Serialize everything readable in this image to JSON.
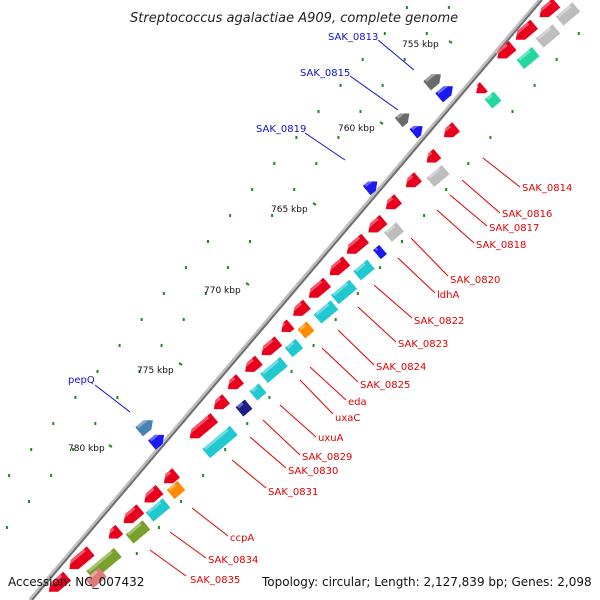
{
  "title": "Streptococcus agalactiae A909, complete genome",
  "footer": {
    "accession": "Accession: NC_007432",
    "topology": "Topology: circular; Length: 2,127,839 bp; Genes: 2,098"
  },
  "ticks": [
    "755 kbp",
    "760 kbp",
    "765 kbp",
    "770 kbp",
    "775 kbp",
    "780 kbp"
  ],
  "labels_forward": [
    "SAK_0813",
    "SAK_0815",
    "SAK_0819",
    "pepQ"
  ],
  "labels_reverse": [
    "SAK_0814",
    "SAK_0816",
    "SAK_0817",
    "SAK_0818",
    "SAK_0820",
    "ldhA",
    "SAK_0822",
    "SAK_0823",
    "SAK_0824",
    "SAK_0825",
    "eda",
    "uxaC",
    "uxuA",
    "SAK_0829",
    "SAK_0830",
    "SAK_0831",
    "ccpA",
    "SAK_0834",
    "SAK_0835"
  ],
  "colors": {
    "backbone": "#8c8c8c",
    "cds_reverse": "#e8001c",
    "cds_forward": "#1a1af0",
    "feature_cyan": "#20c8d0",
    "feature_gray": "#bdbdbd",
    "feature_darkgray": "#6a6a6a",
    "feature_orange": "#ff8c00",
    "feature_olive": "#7aa02c",
    "feature_teal": "#22d8a0",
    "feature_steelblue": "#4682b4",
    "feature_navy": "#1c1c8c",
    "dots_green": "#1f8a1f",
    "label_red": "#e00000",
    "label_blue": "#1010d0"
  }
}
